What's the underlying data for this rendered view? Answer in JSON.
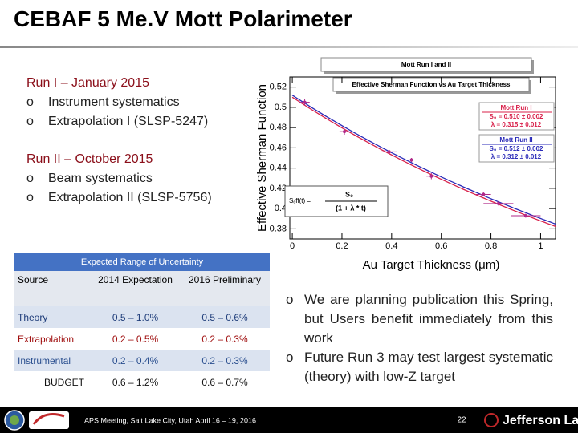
{
  "title": "CEBAF 5 Me.V Mott Polarimeter",
  "bullet": "o",
  "runs": [
    {
      "heading": "Run I – January 2015",
      "items": [
        "Instrument systematics",
        "Extrapolation I (SLSP-5247)"
      ]
    },
    {
      "heading": "Run II – October 2015",
      "items": [
        "Beam systematics",
        "Extrapolation II (SLSP-5756)"
      ]
    }
  ],
  "chart_data": {
    "type": "scatter",
    "title": "Mott Run I and II",
    "subtitle": "Effective Sherman Function vs Au Target Thickness",
    "x_label": "Au Target Thickness (μm)",
    "y_label": "Effective Sherman Function",
    "x": [
      0.05,
      0.21,
      0.39,
      0.48,
      0.56,
      0.77,
      0.83,
      0.94
    ],
    "values": [
      0.505,
      0.476,
      0.456,
      0.448,
      0.432,
      0.414,
      0.405,
      0.393
    ],
    "x_err": [
      0.02,
      0.02,
      0.03,
      0.06,
      0.02,
      0.03,
      0.06,
      0.06
    ],
    "y_err": [
      0.003,
      0.003,
      0.002,
      0.002,
      0.003,
      0.002,
      0.002,
      0.002
    ],
    "color": "#b02a8a",
    "xlim": [
      -0.01,
      1.06
    ],
    "ylim": [
      0.37,
      0.53
    ],
    "xticks": [
      0,
      0.2,
      0.4,
      0.6,
      0.8,
      1
    ],
    "yticks": [
      0.38,
      0.4,
      0.42,
      0.44,
      0.46,
      0.48,
      0.5,
      0.52
    ],
    "fits": [
      {
        "name": "Mott Run I",
        "color": "#d8204a",
        "s0": 0.51,
        "lambda": 0.315,
        "label_s0": "S₀ = 0.510 ± 0.002",
        "label_lambda": "λ = 0.315 ± 0.012"
      },
      {
        "name": "Mott Run II",
        "color": "#2a2ab8",
        "s0": 0.512,
        "lambda": 0.312,
        "label_s0": "S₀ = 0.512 ± 0.002",
        "label_lambda": "λ = 0.312 ± 0.012"
      }
    ],
    "formula": {
      "lhs": "Sₑff(t) =",
      "numerator": "S₀",
      "denominator": "(1 + λ * t)"
    }
  },
  "table": {
    "title": "Expected Range of Uncertainty",
    "header": [
      "Source",
      "2014 Expectation",
      "2016 Preliminary"
    ],
    "rows": [
      [
        "Theory",
        "0.5 – 1.0%",
        "0.5 – 0.6%"
      ],
      [
        "Extrapolation",
        "0.2 – 0.5%",
        "0.2 – 0.3%"
      ],
      [
        "Instrumental",
        "0.2 – 0.4%",
        "0.2 – 0.3%"
      ],
      [
        "BUDGET",
        "0.6 – 1.2%",
        "0.6 – 0.7%"
      ]
    ]
  },
  "notes": [
    "We are planning publication this Spring, but Users benefit immediately from this work",
    "Future Run 3 may test largest systematic (theory) with low-Z target"
  ],
  "footer": {
    "event": "APS Meeting, Salt Lake City, Utah April 16 – 19, 2016",
    "page": "22",
    "logo": "Jefferson Lab"
  }
}
